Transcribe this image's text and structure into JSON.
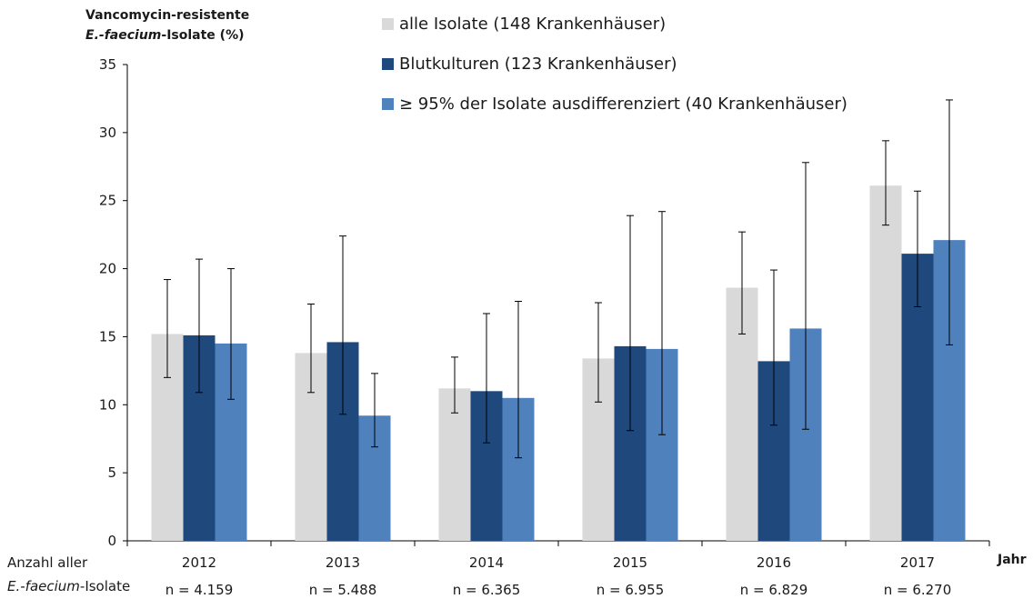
{
  "chart_data": {
    "type": "bar",
    "ylabel_line1": "Vancomycin-resistente",
    "ylabel_line2_italic": "E.-faecium",
    "ylabel_line2_rest": "-Isolate (%)",
    "xlabel": "Jahr",
    "ylim": [
      0,
      35
    ],
    "yticks": [
      "0",
      "5",
      "10",
      "15",
      "20",
      "25",
      "30",
      "35"
    ],
    "categories": [
      "2012",
      "2013",
      "2014",
      "2015",
      "2016",
      "2017"
    ],
    "series": [
      {
        "name": "alle Isolate (148 Krankenhäuser)",
        "color": "#d9d9d9",
        "values": [
          15.2,
          13.8,
          11.2,
          13.4,
          18.6,
          26.1
        ],
        "err_low": [
          12.0,
          10.9,
          9.4,
          10.2,
          15.2,
          23.2
        ],
        "err_high": [
          19.2,
          17.4,
          13.5,
          17.5,
          22.7,
          29.4
        ]
      },
      {
        "name": "Blutkulturen (123 Krankenhäuser)",
        "color": "#1f497d",
        "values": [
          15.1,
          14.6,
          11.0,
          14.3,
          13.2,
          21.1
        ],
        "err_low": [
          10.9,
          9.3,
          7.2,
          8.1,
          8.5,
          17.2
        ],
        "err_high": [
          20.7,
          22.4,
          16.7,
          23.9,
          19.9,
          25.7
        ]
      },
      {
        "name": "≥ 95% der Isolate ausdifferenziert (40 Krankenhäuser)",
        "color": "#4f81bd",
        "values": [
          14.5,
          9.2,
          10.5,
          14.1,
          15.6,
          22.1
        ],
        "err_low": [
          10.4,
          6.9,
          6.1,
          7.8,
          8.2,
          14.4
        ],
        "err_high": [
          20.0,
          12.3,
          17.6,
          24.2,
          27.8,
          32.4
        ]
      }
    ],
    "footer": {
      "label_line1": "Anzahl aller",
      "label_line2_italic": "E.-faecium",
      "label_line2_rest": "-Isolate",
      "counts": [
        "n = 4.159",
        "n = 5.488",
        "n = 6.365",
        "n = 6.955",
        "n = 6.829",
        "n = 6.270"
      ]
    },
    "legend_position": "top-center",
    "grid": false
  }
}
